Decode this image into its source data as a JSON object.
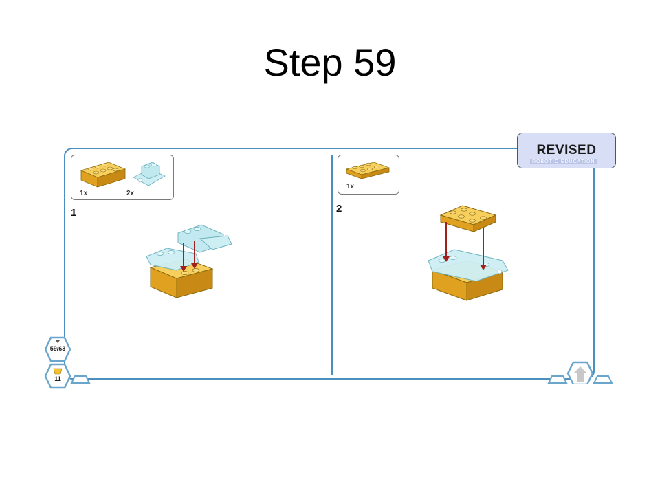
{
  "slide": {
    "title": "Step 59"
  },
  "badge": {
    "label": "REVISED",
    "subtitle": "ROBOTIC EDUCATION"
  },
  "steps": [
    {
      "number": "1",
      "parts": [
        {
          "qty": "1x",
          "icon": "yellow-2x4-brick-icon"
        },
        {
          "qty": "2x",
          "icon": "trans-clear-tile-icon"
        }
      ]
    },
    {
      "number": "2",
      "parts": [
        {
          "qty": "1x",
          "icon": "yellow-2x4-plate-icon"
        }
      ]
    }
  ],
  "nav": {
    "page_counter": "59/63",
    "bottom_count": "11"
  },
  "colors": {
    "panel_border": "#4a8fbf",
    "brick_yellow": "#f2b630",
    "trans_clear": "#bfe8ef",
    "arrow": "#a0201c",
    "badge_bg": "#d7def5"
  }
}
